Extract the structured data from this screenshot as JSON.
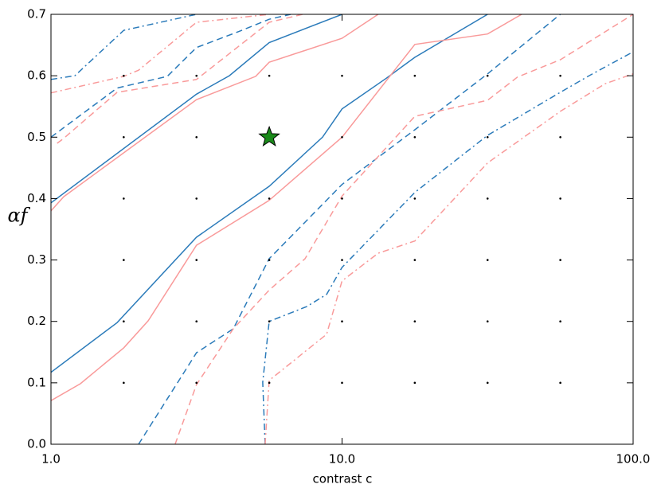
{
  "chart_data": {
    "type": "line",
    "xlabel": "contrast c",
    "ylabel": "αf",
    "xscale": "log",
    "xlim": [
      1,
      100
    ],
    "xticks": [
      {
        "value": 1,
        "label": "1.0"
      },
      {
        "value": 10,
        "label": "10.0"
      },
      {
        "value": 100,
        "label": "100.0"
      }
    ],
    "ylim": [
      0,
      0.7
    ],
    "yticks": [
      {
        "value": 0,
        "label": "0.0"
      },
      {
        "value": 0.1,
        "label": "0.1"
      },
      {
        "value": 0.2,
        "label": "0.2"
      },
      {
        "value": 0.3,
        "label": "0.3"
      },
      {
        "value": 0.4,
        "label": "0.4"
      },
      {
        "value": 0.5,
        "label": "0.5"
      },
      {
        "value": 0.6,
        "label": "0.6"
      },
      {
        "value": 0.7,
        "label": "0.7"
      }
    ],
    "series": [
      {
        "color": "#2b7bba",
        "style": "solid",
        "x": [
          1,
          3.162,
          4.1,
          5.62,
          10
        ],
        "y": [
          0.393,
          0.57,
          0.6,
          0.654,
          0.7
        ]
      },
      {
        "color": "#2b7bba",
        "style": "solid",
        "x": [
          1,
          1.687,
          3.162,
          5.62,
          8.57,
          10,
          14.2,
          17.78,
          31.62
        ],
        "y": [
          0.117,
          0.198,
          0.337,
          0.42,
          0.5,
          0.546,
          0.596,
          0.63,
          0.7
        ]
      },
      {
        "color": "#f99a9a",
        "style": "solid",
        "x": [
          1,
          1.106,
          3.162,
          5.05,
          5.62,
          10,
          13.3
        ],
        "y": [
          0.38,
          0.403,
          0.561,
          0.599,
          0.622,
          0.661,
          0.7
        ]
      },
      {
        "color": "#f99a9a",
        "style": "solid",
        "x": [
          1,
          1.262,
          1.778,
          2.158,
          3.162,
          5.62,
          10,
          17.78,
          31.62,
          41.4
        ],
        "y": [
          0.071,
          0.0985,
          0.157,
          0.201,
          0.324,
          0.397,
          0.5,
          0.651,
          0.668,
          0.7
        ]
      },
      {
        "color": "#2b7bba",
        "style": "dashed",
        "x": [
          1,
          1.687,
          2.51,
          3.162,
          4.42,
          5.62,
          6.66
        ],
        "y": [
          0.5,
          0.58,
          0.599,
          0.646,
          0.672,
          0.692,
          0.7
        ]
      },
      {
        "color": "#2b7bba",
        "style": "dashed",
        "x": [
          2.0,
          3.162,
          4.23,
          5.62,
          10,
          17.78,
          31.62,
          56.2
        ],
        "y": [
          0,
          0.149,
          0.188,
          0.302,
          0.423,
          0.512,
          0.603,
          0.7
        ]
      },
      {
        "color": "#f99a9a",
        "style": "dashed",
        "x": [
          1.05,
          1.106,
          1.687,
          3.162,
          5.62,
          7.32
        ],
        "y": [
          0.49,
          0.498,
          0.573,
          0.594,
          0.687,
          0.7
        ]
      },
      {
        "color": "#f99a9a",
        "style": "dashed",
        "x": [
          2.67,
          3.162,
          4.23,
          5.62,
          7.46,
          10,
          17.78,
          31.62,
          40.1,
          56.2,
          100
        ],
        "y": [
          0,
          0.097,
          0.188,
          0.251,
          0.302,
          0.404,
          0.534,
          0.56,
          0.598,
          0.626,
          0.7
        ]
      },
      {
        "color": "#2b7bba",
        "style": "dashdot",
        "x": [
          1,
          1.208,
          1.778,
          3.162
        ],
        "y": [
          0.594,
          0.6,
          0.674,
          0.7
        ]
      },
      {
        "color": "#2b7bba",
        "style": "dashdot",
        "x": [
          5.44,
          5.34,
          5.62,
          7.55,
          8.85,
          10,
          17.78,
          31.62,
          56.2,
          70.6,
          100
        ],
        "y": [
          0,
          0.101,
          0.2,
          0.224,
          0.244,
          0.288,
          0.41,
          0.503,
          0.573,
          0.6,
          0.639
        ]
      },
      {
        "color": "#f99a9a",
        "style": "dashdot",
        "x": [
          1,
          1.778,
          2.0,
          3.162,
          5.62
        ],
        "y": [
          0.572,
          0.599,
          0.609,
          0.687,
          0.7
        ]
      },
      {
        "color": "#f99a9a",
        "style": "dashdot",
        "x": [
          5.44,
          5.62,
          8.85,
          10,
          13.3,
          17.78,
          31.62,
          56.2,
          80.1,
          100
        ],
        "y": [
          0,
          0.104,
          0.179,
          0.266,
          0.311,
          0.331,
          0.458,
          0.542,
          0.587,
          0.603
        ]
      },
      {
        "color": "#000000",
        "style": "dot",
        "x": [
          1.778,
          3.162,
          5.623,
          10,
          17.78,
          31.62,
          56.23,
          1.778,
          3.162,
          5.623,
          10,
          17.78,
          31.62,
          56.23,
          1.778,
          3.162,
          5.623,
          10,
          17.78,
          31.62,
          56.23,
          1.778,
          3.162,
          5.623,
          10,
          17.78,
          31.62,
          56.23,
          1.778,
          3.162,
          5.623,
          10,
          17.78,
          31.62,
          56.23,
          1.778,
          3.162,
          5.623,
          10,
          17.78,
          31.62,
          56.23
        ],
        "y": [
          0.1,
          0.1,
          0.1,
          0.1,
          0.1,
          0.1,
          0.1,
          0.2,
          0.2,
          0.2,
          0.2,
          0.2,
          0.2,
          0.2,
          0.3,
          0.3,
          0.3,
          0.3,
          0.3,
          0.3,
          0.3,
          0.4,
          0.4,
          0.4,
          0.4,
          0.4,
          0.4,
          0.4,
          0.5,
          0.5,
          0.5,
          0.5,
          0.5,
          0.5,
          0.5,
          0.6,
          0.6,
          0.6,
          0.6,
          0.6,
          0.6,
          0.6
        ]
      },
      {
        "color": "#1a8a1a",
        "style": "star",
        "x": [
          5.623
        ],
        "y": [
          0.5
        ]
      }
    ]
  }
}
